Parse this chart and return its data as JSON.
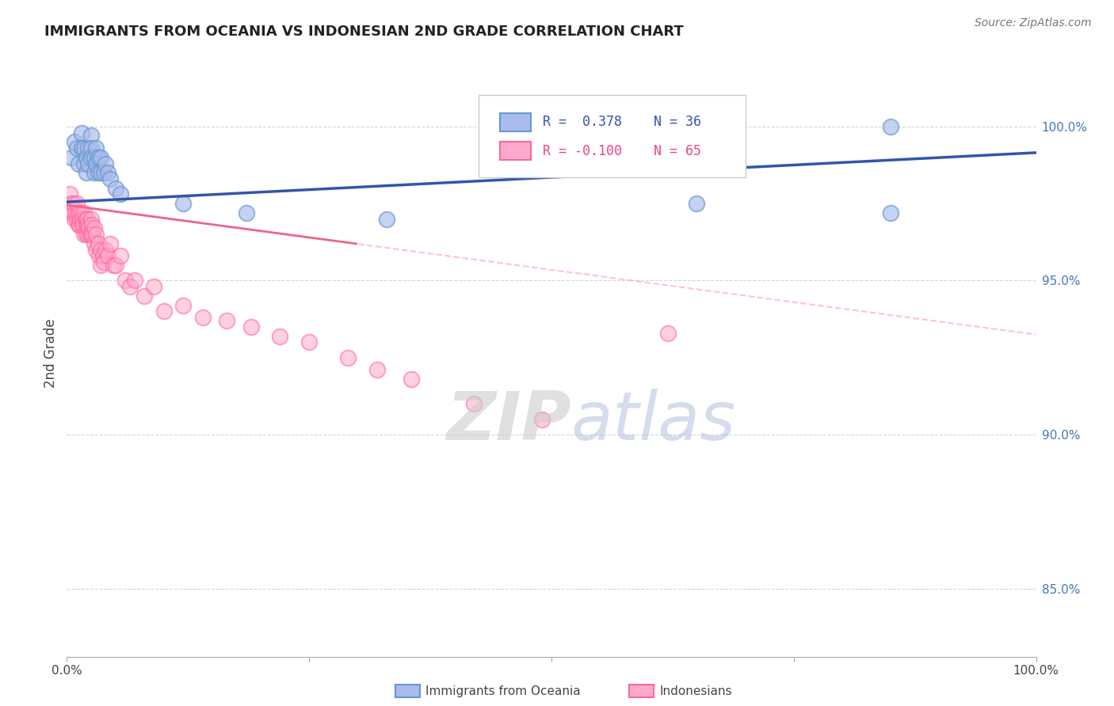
{
  "title": "IMMIGRANTS FROM OCEANIA VS INDONESIAN 2ND GRADE CORRELATION CHART",
  "source": "Source: ZipAtlas.com",
  "ylabel": "2nd Grade",
  "legend_blue_r": "R =  0.378",
  "legend_blue_n": "N = 36",
  "legend_pink_r": "R = -0.100",
  "legend_pink_n": "N = 65",
  "blue_color": "#6699CC",
  "pink_color": "#FF6699",
  "blue_marker_facecolor": "#AABBEE",
  "pink_marker_facecolor": "#FFAACC",
  "trend_blue_color": "#3355AA",
  "trend_pink_solid_color": "#EE6688",
  "trend_pink_dash_color": "#FFAABB",
  "grid_color": "#CCCCCC",
  "ytick_positions": [
    0.85,
    0.9,
    0.95,
    1.0
  ],
  "ytick_labels": [
    "85.0%",
    "90.0%",
    "95.0%",
    "100.0%"
  ],
  "ymin": 0.828,
  "ymax": 1.025,
  "xmin": 0.0,
  "xmax": 1.0,
  "blue_scatter_x": [
    0.005,
    0.008,
    0.01,
    0.012,
    0.015,
    0.015,
    0.018,
    0.018,
    0.02,
    0.02,
    0.022,
    0.022,
    0.025,
    0.025,
    0.025,
    0.028,
    0.028,
    0.03,
    0.03,
    0.032,
    0.032,
    0.035,
    0.035,
    0.038,
    0.04,
    0.042,
    0.045,
    0.05,
    0.055,
    0.12,
    0.185,
    0.33,
    0.65,
    0.85,
    0.65,
    0.85
  ],
  "blue_scatter_y": [
    0.99,
    0.995,
    0.993,
    0.988,
    0.998,
    0.993,
    0.988,
    0.993,
    0.99,
    0.985,
    0.993,
    0.988,
    0.997,
    0.993,
    0.99,
    0.99,
    0.985,
    0.993,
    0.988,
    0.99,
    0.985,
    0.99,
    0.985,
    0.985,
    0.988,
    0.985,
    0.983,
    0.98,
    0.978,
    0.975,
    0.972,
    0.97,
    1.0,
    1.0,
    0.975,
    0.972
  ],
  "pink_scatter_x": [
    0.003,
    0.005,
    0.006,
    0.007,
    0.008,
    0.009,
    0.01,
    0.01,
    0.011,
    0.012,
    0.013,
    0.013,
    0.014,
    0.015,
    0.015,
    0.016,
    0.017,
    0.018,
    0.018,
    0.019,
    0.02,
    0.02,
    0.021,
    0.022,
    0.022,
    0.023,
    0.024,
    0.025,
    0.025,
    0.026,
    0.027,
    0.028,
    0.028,
    0.03,
    0.03,
    0.032,
    0.033,
    0.035,
    0.035,
    0.037,
    0.038,
    0.04,
    0.042,
    0.045,
    0.048,
    0.05,
    0.055,
    0.06,
    0.065,
    0.07,
    0.08,
    0.09,
    0.1,
    0.12,
    0.14,
    0.165,
    0.19,
    0.22,
    0.25,
    0.29,
    0.32,
    0.355,
    0.42,
    0.49,
    0.62
  ],
  "pink_scatter_y": [
    0.978,
    0.975,
    0.972,
    0.975,
    0.97,
    0.972,
    0.975,
    0.97,
    0.972,
    0.968,
    0.972,
    0.968,
    0.97,
    0.972,
    0.968,
    0.97,
    0.968,
    0.972,
    0.965,
    0.97,
    0.968,
    0.965,
    0.97,
    0.968,
    0.965,
    0.967,
    0.965,
    0.97,
    0.965,
    0.968,
    0.965,
    0.967,
    0.962,
    0.965,
    0.96,
    0.962,
    0.958,
    0.96,
    0.955,
    0.958,
    0.956,
    0.96,
    0.958,
    0.962,
    0.955,
    0.955,
    0.958,
    0.95,
    0.948,
    0.95,
    0.945,
    0.948,
    0.94,
    0.942,
    0.938,
    0.937,
    0.935,
    0.932,
    0.93,
    0.925,
    0.921,
    0.918,
    0.91,
    0.905,
    0.933
  ],
  "trend_pink_solid_end": 0.3,
  "trend_pink_dash_start": 0.3
}
